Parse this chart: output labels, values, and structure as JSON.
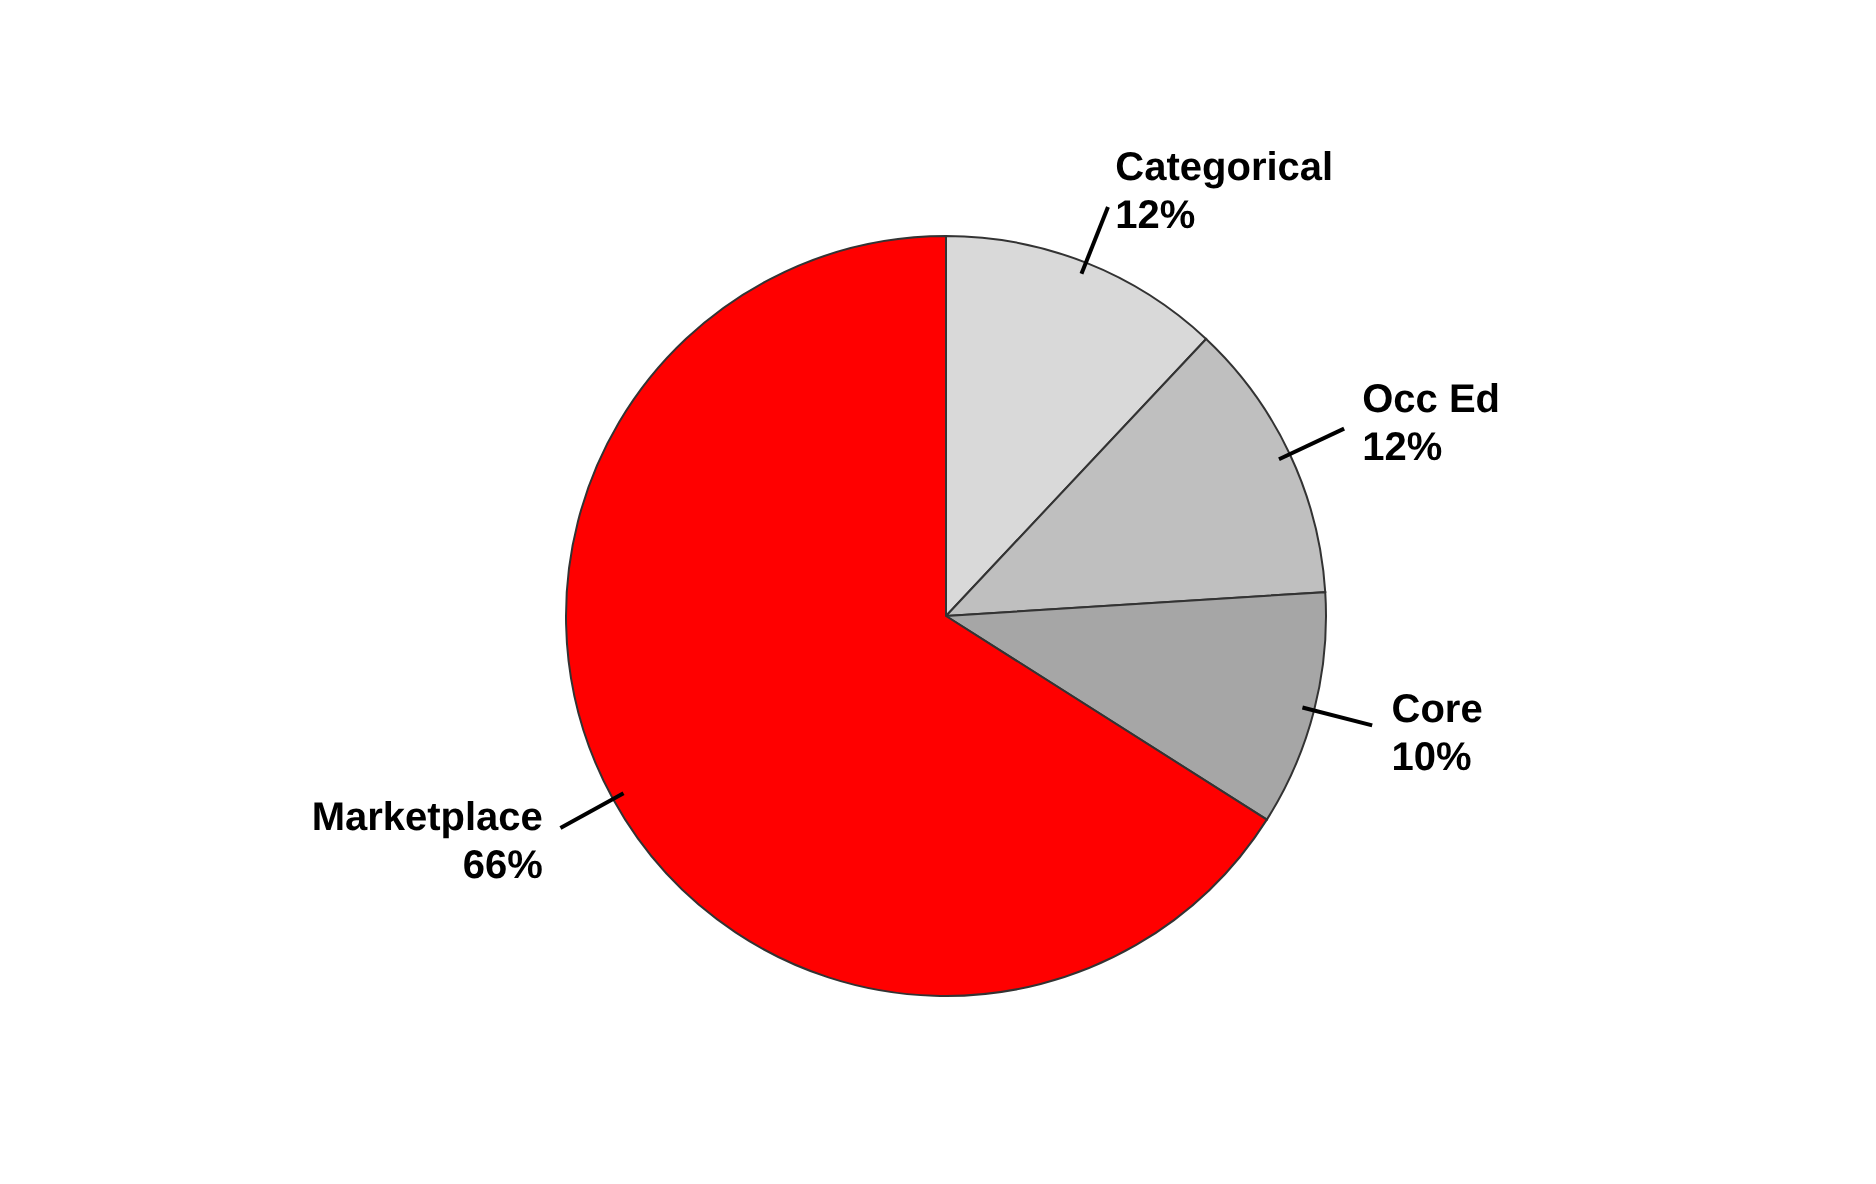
{
  "chart_data": {
    "type": "pie",
    "categories": [
      "Categorical",
      "Occ Ed",
      "Core",
      "Marketplace"
    ],
    "values": [
      12,
      12,
      10,
      66
    ],
    "colors": [
      "#d9d9d9",
      "#bfbfbf",
      "#a6a6a6",
      "#ff0000"
    ],
    "value_labels": [
      "12%",
      "12%",
      "10%",
      "66%"
    ],
    "legend": false
  }
}
